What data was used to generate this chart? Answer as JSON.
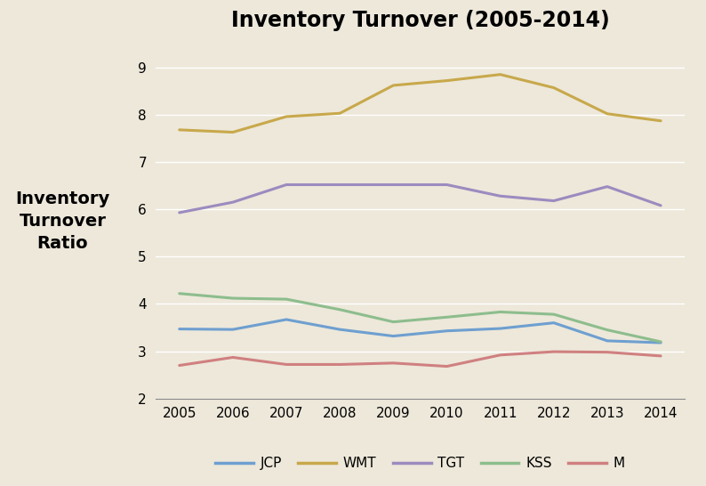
{
  "title": "Inventory Turnover (2005-2014)",
  "ylabel_lines": [
    "Inventory",
    "Turnover",
    "Ratio"
  ],
  "years": [
    2005,
    2006,
    2007,
    2008,
    2009,
    2010,
    2011,
    2012,
    2013,
    2014
  ],
  "series_order": [
    "JCP",
    "WMT",
    "TGT",
    "KSS",
    "M"
  ],
  "series": {
    "JCP": [
      3.47,
      3.46,
      3.67,
      3.46,
      3.32,
      3.43,
      3.48,
      3.6,
      3.22,
      3.18
    ],
    "WMT": [
      7.68,
      7.63,
      7.96,
      8.03,
      8.62,
      8.72,
      8.85,
      8.57,
      8.02,
      7.87
    ],
    "TGT": [
      5.93,
      6.15,
      6.52,
      6.52,
      6.52,
      6.52,
      6.28,
      6.18,
      6.48,
      6.08
    ],
    "KSS": [
      4.22,
      4.12,
      4.1,
      3.88,
      3.62,
      3.72,
      3.83,
      3.78,
      3.45,
      3.2
    ],
    "M": [
      2.7,
      2.87,
      2.72,
      2.72,
      2.75,
      2.68,
      2.92,
      2.99,
      2.98,
      2.9
    ]
  },
  "colors": {
    "JCP": "#6E9FD0",
    "WMT": "#C8A84B",
    "TGT": "#9B8BBF",
    "KSS": "#8DBD8D",
    "M": "#D08080"
  },
  "ylim": [
    2,
    9.5
  ],
  "yticks": [
    2,
    3,
    4,
    5,
    6,
    7,
    8,
    9
  ],
  "background_color": "#EDE8DA",
  "plot_bg_color": "#EDE8DA",
  "title_fontsize": 17,
  "axis_label_fontsize": 14,
  "tick_fontsize": 11,
  "legend_fontsize": 11,
  "linewidth": 2.2
}
